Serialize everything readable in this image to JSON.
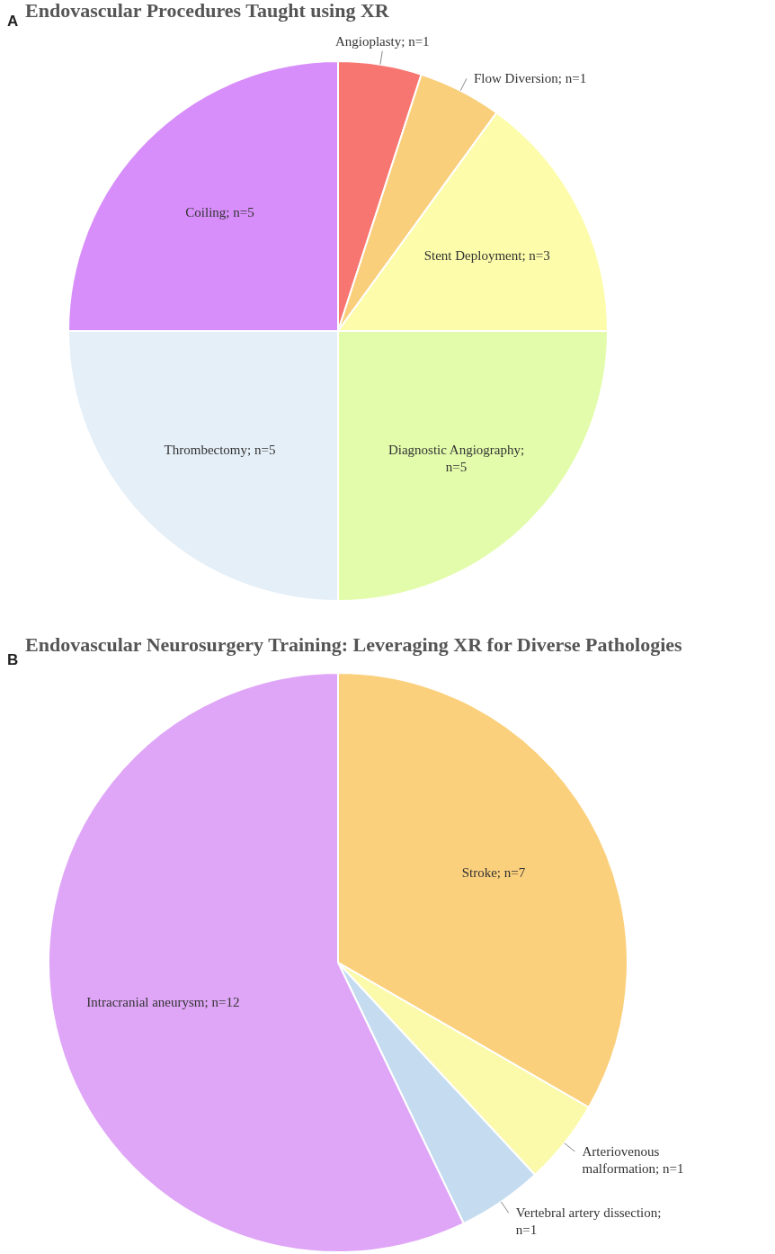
{
  "chart_data": [
    {
      "type": "pie",
      "title": "Endovascular Procedures Taught using XR",
      "annotations": [
        "A"
      ],
      "categories": [
        "Angioplasty; n=1",
        "Flow Diversion; n=1",
        "Stent Deployment; n=3",
        "Diagnostic Angiography; n=5",
        "Thrombectomy; n=5",
        "Coiling; n=5"
      ],
      "values": [
        1,
        1,
        3,
        5,
        5,
        5
      ],
      "colors": [
        "#f87672",
        "#f9cf7b",
        "#fcfcab",
        "#e3fcab",
        "#e5eff8",
        "#d78efa"
      ]
    },
    {
      "type": "pie",
      "title": "Endovascular Neurosurgery Training: Leveraging XR for Diverse Pathologies",
      "annotations": [
        "B"
      ],
      "categories": [
        "Stroke; n=7",
        "Arteriovenous malformation; n=1",
        "Vertebral artery dissection; n=1",
        "Intracranial aneurysm; n=12"
      ],
      "values": [
        7,
        1,
        1,
        12
      ],
      "colors": [
        "#fbd07c",
        "#fbfaab",
        "#c5dcf0",
        "#dfa6f7"
      ]
    }
  ]
}
